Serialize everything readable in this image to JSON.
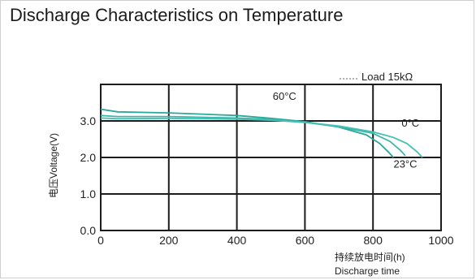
{
  "title": "Discharge Characteristics on Temperature",
  "chart_data": {
    "type": "line",
    "title": "Discharge Characteristics on Temperature",
    "load_label": "Load 15kΩ",
    "ylabel": "电压Voltage(V)",
    "xlabel_cn": "持续放电时间(h)",
    "xlabel": "Discharge time",
    "xlim": [
      0,
      1000
    ],
    "ylim": [
      0,
      4.0
    ],
    "x_ticks": [
      "0",
      "200",
      "400",
      "600",
      "800",
      "1000"
    ],
    "y_ticks": [
      "0.0",
      "1.0",
      "2.0",
      "3.0"
    ],
    "grid": true,
    "series": [
      {
        "name": "60°C",
        "color": "#2aa89a",
        "points": [
          [
            0,
            3.32
          ],
          [
            50,
            3.25
          ],
          [
            200,
            3.22
          ],
          [
            400,
            3.15
          ],
          [
            500,
            3.07
          ],
          [
            600,
            2.98
          ],
          [
            700,
            2.83
          ],
          [
            780,
            2.62
          ],
          [
            820,
            2.38
          ],
          [
            845,
            2.15
          ],
          [
            860,
            2.0
          ]
        ]
      },
      {
        "name": "23°C",
        "color": "#3bb6aa",
        "points": [
          [
            0,
            3.15
          ],
          [
            50,
            3.12
          ],
          [
            200,
            3.12
          ],
          [
            400,
            3.08
          ],
          [
            500,
            3.04
          ],
          [
            600,
            2.96
          ],
          [
            700,
            2.84
          ],
          [
            800,
            2.66
          ],
          [
            850,
            2.44
          ],
          [
            880,
            2.2
          ],
          [
            895,
            2.05
          ]
        ]
      },
      {
        "name": "0°C",
        "color": "#45c0b4",
        "points": [
          [
            0,
            3.08
          ],
          [
            50,
            3.06
          ],
          [
            200,
            3.07
          ],
          [
            400,
            3.05
          ],
          [
            500,
            3.02
          ],
          [
            600,
            2.96
          ],
          [
            700,
            2.86
          ],
          [
            800,
            2.7
          ],
          [
            860,
            2.55
          ],
          [
            900,
            2.38
          ],
          [
            930,
            2.15
          ],
          [
            945,
            2.0
          ]
        ]
      }
    ],
    "annotations": [
      {
        "text": "60°C",
        "x": 540,
        "y": 3.58
      },
      {
        "text": "0°C",
        "x": 910,
        "y": 2.85
      },
      {
        "text": "23°C",
        "x": 895,
        "y": 1.72
      }
    ]
  }
}
